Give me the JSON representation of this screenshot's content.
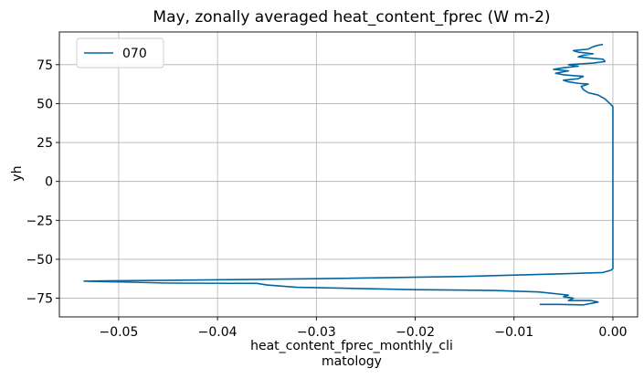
{
  "chart_data": {
    "type": "line",
    "title": "May, zonally averaged heat_content_fprec (W m-2)",
    "xlabel_lines": [
      "heat_content_fprec_monthly_cli",
      "matology"
    ],
    "ylabel": "yh",
    "xlim": [
      -0.056,
      0.0025
    ],
    "ylim": [
      -87,
      96
    ],
    "xticks": [
      -0.05,
      -0.04,
      -0.03,
      -0.02,
      -0.01,
      0.0
    ],
    "xtick_labels": [
      "−0.05",
      "−0.04",
      "−0.03",
      "−0.02",
      "−0.01",
      "0.00"
    ],
    "yticks": [
      -75,
      -50,
      -25,
      0,
      25,
      50,
      75
    ],
    "ytick_labels": [
      "−75",
      "−50",
      "−25",
      "0",
      "25",
      "50",
      "75"
    ],
    "grid": true,
    "legend_position": "top-left",
    "color": "#0066a1",
    "series": [
      {
        "name": "070",
        "points": [
          [
            -0.0074,
            -79
          ],
          [
            -0.0055,
            -79
          ],
          [
            -0.003,
            -79.3
          ],
          [
            -0.0015,
            -77.5
          ],
          [
            -0.0022,
            -76.5
          ],
          [
            -0.0045,
            -76.5
          ],
          [
            -0.004,
            -75
          ],
          [
            -0.005,
            -74
          ],
          [
            -0.0045,
            -73
          ],
          [
            -0.0075,
            -71
          ],
          [
            -0.012,
            -70
          ],
          [
            -0.02,
            -69.5
          ],
          [
            -0.032,
            -68
          ],
          [
            -0.035,
            -66.5
          ],
          [
            -0.036,
            -65.5
          ],
          [
            -0.045,
            -65.3
          ],
          [
            -0.0535,
            -64
          ],
          [
            -0.045,
            -63.5
          ],
          [
            -0.03,
            -62.5
          ],
          [
            -0.015,
            -61
          ],
          [
            -0.006,
            -59.5
          ],
          [
            -0.001,
            -58.5
          ],
          [
            -0.0002,
            -57
          ],
          [
            0.0,
            -56
          ],
          [
            0.0,
            -40
          ],
          [
            0.0,
            0
          ],
          [
            0.0,
            30
          ],
          [
            0.0,
            48
          ],
          [
            -0.0003,
            50
          ],
          [
            -0.0008,
            53
          ],
          [
            -0.0015,
            55.5
          ],
          [
            -0.0025,
            57
          ],
          [
            -0.003,
            59
          ],
          [
            -0.0032,
            61
          ],
          [
            -0.0025,
            62.5
          ],
          [
            -0.0035,
            63
          ],
          [
            -0.0045,
            64
          ],
          [
            -0.005,
            65
          ],
          [
            -0.0035,
            66
          ],
          [
            -0.003,
            67.5
          ],
          [
            -0.005,
            68.5
          ],
          [
            -0.0058,
            69.5
          ],
          [
            -0.0045,
            71
          ],
          [
            -0.006,
            72
          ],
          [
            -0.005,
            73
          ],
          [
            -0.0035,
            74
          ],
          [
            -0.0045,
            75
          ],
          [
            -0.002,
            76
          ],
          [
            -0.0008,
            77
          ],
          [
            -0.001,
            78.5
          ],
          [
            -0.002,
            79
          ],
          [
            -0.0035,
            80
          ],
          [
            -0.003,
            81
          ],
          [
            -0.002,
            82
          ],
          [
            -0.0035,
            83
          ],
          [
            -0.004,
            84
          ],
          [
            -0.0025,
            85
          ],
          [
            -0.002,
            86.5
          ],
          [
            -0.0015,
            87.5
          ],
          [
            -0.001,
            88
          ]
        ]
      }
    ]
  }
}
